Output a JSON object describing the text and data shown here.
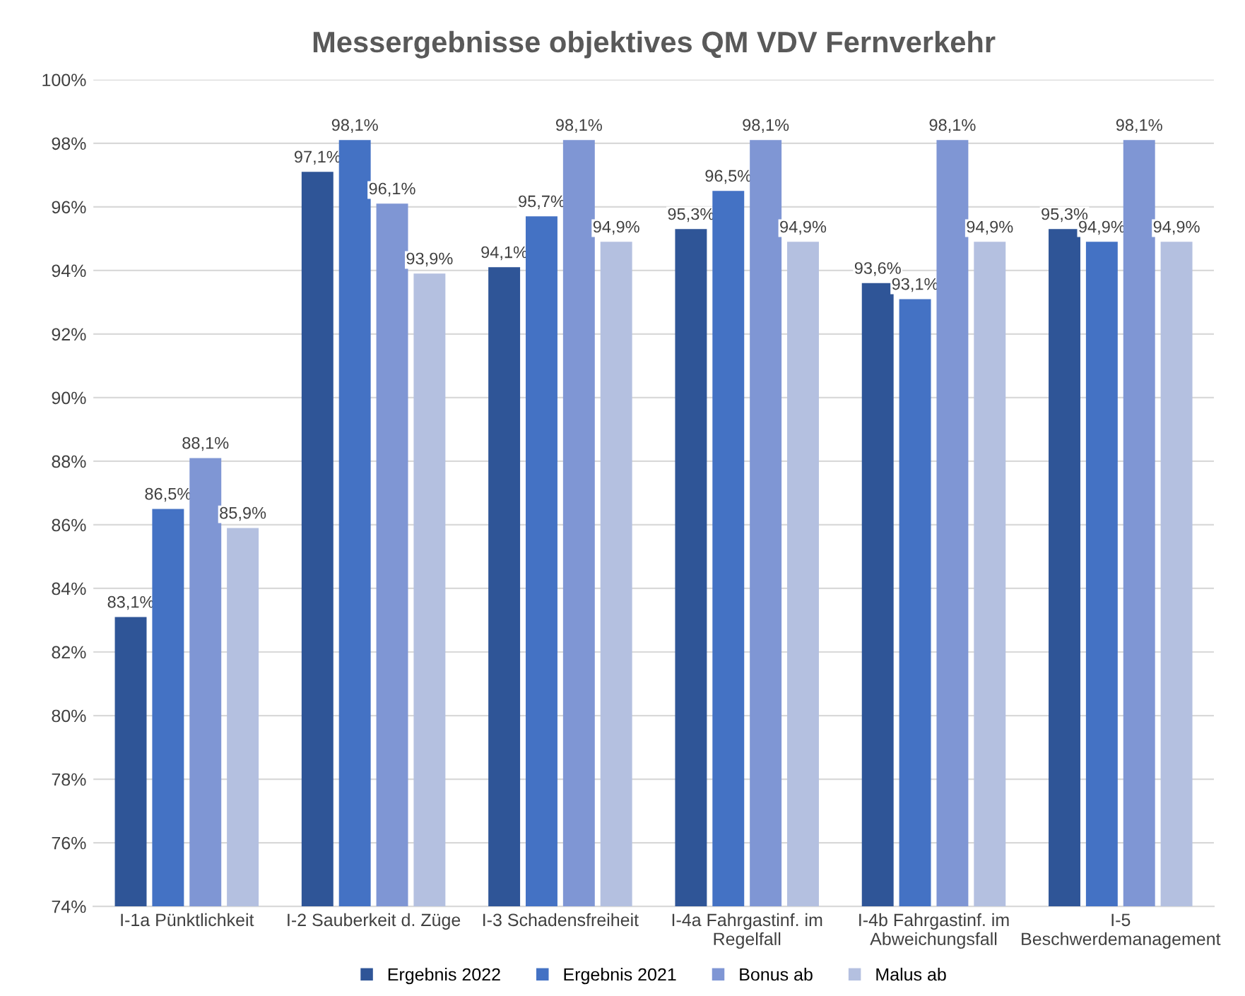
{
  "chart_data": {
    "type": "bar",
    "title": "Messergebnisse objektives QM VDV Fernverkehr",
    "categories": [
      "I-1a Pünktlichkeit",
      "I-2 Sauberkeit d. Züge",
      "I-3 Schadensfreiheit",
      "I-4a Fahrgastinf. im\nRegelfall",
      "I-4b Fahrgastinf. im\nAbweichungsfall",
      "I-5\nBeschwerdemanagement"
    ],
    "series": [
      {
        "name": "Ergebnis 2022",
        "color": "#2f5597",
        "values": [
          83.1,
          97.1,
          94.1,
          95.3,
          93.6,
          95.3
        ],
        "value_labels": [
          "83,1%",
          "97,1%",
          "94,1%",
          "95,3%",
          "93,6%",
          "95,3%"
        ]
      },
      {
        "name": "Ergebnis 2021",
        "color": "#4472c4",
        "values": [
          86.5,
          98.1,
          95.7,
          96.5,
          93.1,
          94.9
        ],
        "value_labels": [
          "86,5%",
          "98,1%",
          "95,7%",
          "96,5%",
          "93,1%",
          "94,9%"
        ]
      },
      {
        "name": "Bonus ab",
        "color": "#7f96d4",
        "values": [
          88.1,
          96.1,
          98.1,
          98.1,
          98.1,
          98.1
        ],
        "value_labels": [
          "88,1%",
          "96,1%",
          "98,1%",
          "98,1%",
          "98,1%",
          "98,1%"
        ]
      },
      {
        "name": "Malus ab",
        "color": "#b4c0e0",
        "values": [
          85.9,
          93.9,
          94.9,
          94.9,
          94.9,
          94.9
        ],
        "value_labels": [
          "85,9%",
          "93,9%",
          "94,9%",
          "94,9%",
          "94,9%",
          "94,9%"
        ]
      }
    ],
    "ylim": [
      74,
      100
    ],
    "yticks": [
      {
        "value": 74,
        "label": "74%"
      },
      {
        "value": 76,
        "label": "76%"
      },
      {
        "value": 78,
        "label": "78%"
      },
      {
        "value": 80,
        "label": "80%"
      },
      {
        "value": 82,
        "label": "82%"
      },
      {
        "value": 84,
        "label": "84%"
      },
      {
        "value": 86,
        "label": "86%"
      },
      {
        "value": 88,
        "label": "88%"
      },
      {
        "value": 90,
        "label": "90%"
      },
      {
        "value": 92,
        "label": "92%"
      },
      {
        "value": 94,
        "label": "94%"
      },
      {
        "value": 96,
        "label": "96%"
      },
      {
        "value": 98,
        "label": "98%"
      },
      {
        "value": 100,
        "label": "100%"
      }
    ],
    "grid": "y",
    "legend": "bottom"
  }
}
